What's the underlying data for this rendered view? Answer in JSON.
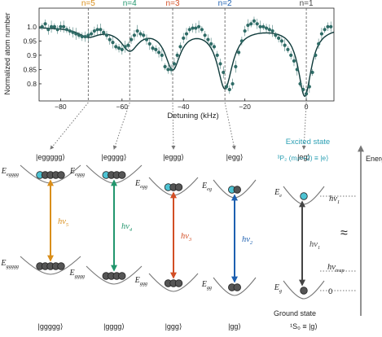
{
  "chart_data": {
    "type": "scatter",
    "xlabel": "Detuning (kHz)",
    "ylabel": "Normalized atom number",
    "xlim": [
      -87,
      9
    ],
    "ylim": [
      0.74,
      1.065
    ],
    "xticks": [
      "−80",
      "−60",
      "−40",
      "−20",
      "0"
    ],
    "xtick_values": [
      -80,
      -60,
      -40,
      -20,
      0
    ],
    "yticks": [
      "0.8",
      "0.85",
      "0.9",
      "0.95",
      "1.0"
    ],
    "ytick_values": [
      0.8,
      0.85,
      0.9,
      0.95,
      1.0
    ],
    "x": [
      -86,
      -85,
      -84,
      -83,
      -82,
      -81,
      -80,
      -79,
      -78,
      -77,
      -76,
      -75,
      -74,
      -73,
      -72,
      -71,
      -70,
      -69,
      -68,
      -67,
      -66,
      -65,
      -64,
      -63,
      -62,
      -61,
      -60,
      -59,
      -58,
      -57,
      -56,
      -55,
      -54,
      -53,
      -52,
      -51,
      -50,
      -49,
      -48,
      -47,
      -46,
      -45,
      -44,
      -43,
      -42,
      -41,
      -40,
      -39,
      -38,
      -37,
      -36,
      -35,
      -34,
      -33,
      -32,
      -31,
      -30,
      -29,
      -28,
      -27,
      -26,
      -25,
      -24,
      -23,
      -22,
      -21,
      -20,
      -19,
      -18,
      -17,
      -16,
      -15,
      -14,
      -13,
      -12,
      -11,
      -10,
      -9,
      -8,
      -7,
      -6,
      -5,
      -4,
      -3,
      -2,
      -1,
      0,
      1,
      2,
      3,
      4,
      5,
      6,
      7,
      8
    ],
    "y": [
      1.0,
      1.01,
      0.99,
      1.0,
      1.0,
      0.99,
      1.0,
      1.0,
      0.99,
      0.985,
      0.98,
      0.975,
      0.97,
      0.965,
      0.965,
      0.97,
      0.975,
      0.985,
      0.99,
      0.99,
      0.98,
      0.97,
      0.955,
      0.945,
      0.93,
      0.925,
      0.92,
      0.93,
      0.935,
      0.955,
      0.97,
      0.985,
      0.975,
      0.97,
      0.955,
      0.94,
      0.925,
      0.92,
      0.91,
      0.9,
      0.86,
      0.85,
      0.85,
      0.87,
      0.9,
      0.93,
      0.96,
      0.975,
      0.99,
      0.995,
      0.995,
      1.0,
      0.99,
      0.97,
      0.955,
      0.94,
      0.93,
      0.9,
      0.87,
      0.84,
      0.79,
      0.78,
      0.8,
      0.86,
      0.91,
      0.95,
      0.985,
      1.005,
      1.01,
      1.02,
      1.01,
      1.0,
      1.0,
      0.995,
      0.99,
      0.985,
      0.97,
      0.96,
      0.95,
      0.935,
      0.92,
      0.9,
      0.88,
      0.85,
      0.8,
      0.78,
      0.765,
      0.79,
      0.84,
      0.9,
      0.94,
      0.975,
      0.99,
      1.0,
      1.0
    ],
    "fit_label": "",
    "markers": [
      {
        "label": "n=5",
        "x": -71,
        "color": "#d98e1a"
      },
      {
        "label": "n=4",
        "x": -57.5,
        "color": "#22966d"
      },
      {
        "label": "n=3",
        "x": -43.5,
        "color": "#d24e25"
      },
      {
        "label": "n=2",
        "x": -26.5,
        "color": "#1c5fb0"
      },
      {
        "label": "n=1",
        "x": 0,
        "color": "#444444"
      }
    ],
    "point_color": "#2e6b66",
    "fit_color": "#0e3a3a"
  },
  "diagram": {
    "states_top": [
      "|eggggg⟩",
      "|egggg⟩",
      "|eggg⟩",
      "|egg⟩",
      "|eg⟩"
    ],
    "states_bottom": [
      "|ggggg⟩",
      "|gggg⟩",
      "|ggg⟩",
      "|gg⟩",
      "¹S₀ ≡ |g⟩"
    ],
    "upper_labels": [
      {
        "main": "E",
        "sub": "egggg"
      },
      {
        "main": "E",
        "sub": "eggg"
      },
      {
        "main": "E",
        "sub": "egg"
      },
      {
        "main": "E",
        "sub": "eg"
      },
      {
        "main": "E",
        "sub": "e"
      }
    ],
    "lower_labels": [
      {
        "main": "E",
        "sub": "ggggg"
      },
      {
        "main": "E",
        "sub": "gggg"
      },
      {
        "main": "E",
        "sub": "ggg"
      },
      {
        "main": "E",
        "sub": "gg"
      },
      {
        "main": "E",
        "sub": "g"
      }
    ],
    "transitions": [
      {
        "main": "hν",
        "sub": "5",
        "color": "#d98e1a"
      },
      {
        "main": "hν",
        "sub": "4",
        "color": "#22966d"
      },
      {
        "main": "hν",
        "sub": "3",
        "color": "#d24e25"
      },
      {
        "main": "hν",
        "sub": "2",
        "color": "#1c5fb0"
      },
      {
        "main": "hν",
        "sub": "1",
        "color": "#444444"
      }
    ],
    "excited_title": "Excited state",
    "excited_def": "³P₂ (mⱼ=+2) ≡ |e⟩",
    "ground_title": "Ground state",
    "energy_label": "Energy",
    "hv1_right": {
      "main": "hν",
      "sub": "1"
    },
    "hv_trap": {
      "main": "hν",
      "sub": "trap"
    },
    "zero": "0",
    "approx": "≈",
    "colors": {
      "excited_atom": "#4dc3d3",
      "ground_atom": "#555555",
      "accent_text": "#2a9fb3"
    }
  }
}
